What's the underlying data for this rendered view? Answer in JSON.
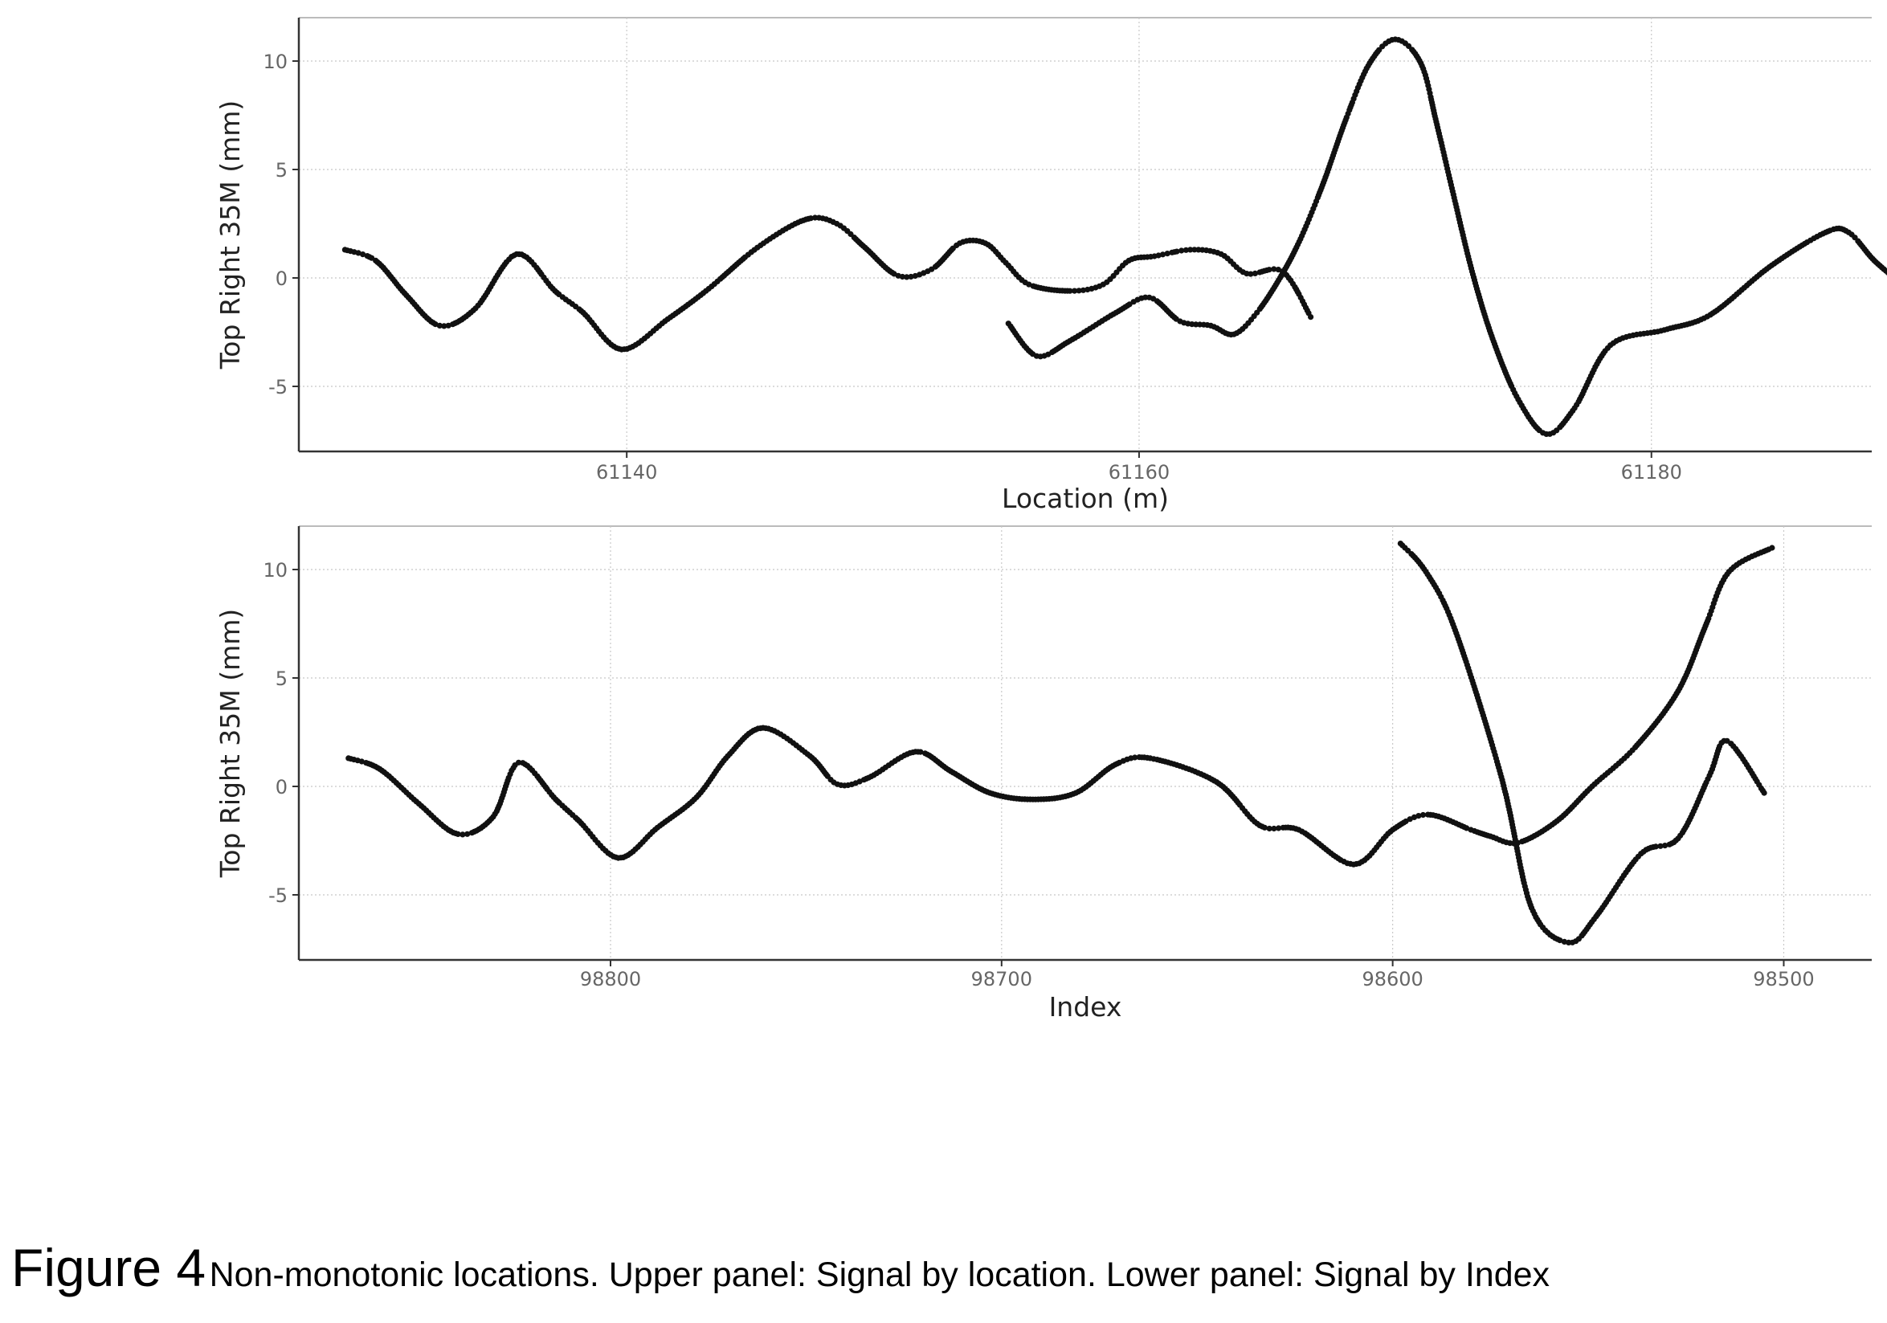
{
  "caption": {
    "label": "Figure 4",
    "text": "Non-monotonic locations. Upper panel: Signal by location. Lower panel: Signal by Index"
  },
  "chart_data": [
    {
      "type": "scatter",
      "xlabel": "Location (m)",
      "ylabel": "Top Right 35M (mm)",
      "xlim": [
        61127.2,
        61188.6
      ],
      "ylim": [
        -8,
        12
      ],
      "xticks": [
        61140,
        61160,
        61180
      ],
      "xtick_labels": [
        "61140",
        "61160",
        "61180"
      ],
      "yticks": [
        -5,
        0,
        5,
        10
      ],
      "ytick_labels": [
        "-5",
        "0",
        "5",
        "10"
      ],
      "grid": true,
      "series": [
        {
          "x": [
            61129.0,
            61130.2,
            61131.4,
            61132.7,
            61134.1,
            61135.7,
            61137.2,
            61138.3,
            61139.8,
            61141.6,
            61143.2,
            61145.1,
            61147.0,
            61148.2,
            61149.3,
            61150.6,
            61151.9,
            61153.0,
            61154.0,
            61154.8,
            61155.7,
            61157.3,
            61158.6,
            61159.6,
            61160.6,
            61162.0,
            61163.2,
            61164.2,
            61165.6,
            61166.7
          ],
          "y": [
            1.3,
            0.8,
            -0.8,
            -2.2,
            -1.4,
            1.1,
            -0.6,
            -1.6,
            -3.3,
            -1.9,
            -0.5,
            1.4,
            2.7,
            2.5,
            1.4,
            0.1,
            0.4,
            1.6,
            1.6,
            0.7,
            -0.3,
            -0.6,
            -0.3,
            0.8,
            1.0,
            1.3,
            1.1,
            0.2,
            0.3,
            -1.8
          ]
        },
        {
          "x": [
            61154.9,
            61156.0,
            61157.3,
            61159.1,
            61160.4,
            61161.6,
            61162.8,
            61163.7,
            61164.6,
            61165.5,
            61166.3,
            61167.2,
            61168.1,
            61169.0,
            61170.0,
            61171.0,
            61171.6,
            61172.3,
            61173.0,
            61173.8,
            61174.8,
            61175.9,
            61177.0,
            61178.4,
            61180.5,
            61182.3,
            61184.6,
            61186.8,
            61187.7,
            61188.7,
            61189.8
          ],
          "y": [
            -2.1,
            -3.6,
            -2.9,
            -1.6,
            -0.9,
            -2.0,
            -2.2,
            -2.6,
            -1.6,
            0.0,
            1.8,
            4.4,
            7.4,
            9.9,
            11.0,
            9.9,
            7.2,
            3.7,
            0.3,
            -2.8,
            -5.6,
            -7.2,
            -6.0,
            -3.1,
            -2.4,
            -1.7,
            0.5,
            2.1,
            2.1,
            0.8,
            -0.3
          ]
        }
      ]
    },
    {
      "type": "scatter",
      "xlabel": "Index",
      "ylabel": "Top Right 35M (mm)",
      "xlim": [
        98879.7,
        98477.5
      ],
      "ylim": [
        -8,
        12
      ],
      "xticks": [
        98800,
        98700,
        98600,
        98500
      ],
      "xtick_labels": [
        "98800",
        "98700",
        "98600",
        "98500"
      ],
      "yticks": [
        -5,
        0,
        5,
        10
      ],
      "ytick_labels": [
        "-5",
        "0",
        "5",
        "10"
      ],
      "grid": true,
      "series": [
        {
          "x": [
            98867.0,
            98859.0,
            98849.0,
            98839.0,
            98830.0,
            98823.5,
            98814.0,
            98808.0,
            98798.0,
            98788.0,
            98778.0,
            98770.0,
            98761.0,
            98749.0,
            98742.0,
            98734.0,
            98722.0,
            98713.0,
            98703.0,
            98692.0,
            98681.0,
            98671.0,
            98662.0,
            98645.0,
            98634.0,
            98624.0,
            98610.0,
            98600.0,
            98591.0,
            98580.0,
            98575.0,
            98568.0,
            98558.0,
            98549.0,
            98538.0,
            98527.0,
            98520.0,
            98514.0,
            98503.0
          ],
          "y": [
            1.3,
            0.8,
            -0.8,
            -2.2,
            -1.4,
            1.1,
            -0.6,
            -1.6,
            -3.3,
            -1.9,
            -0.5,
            1.4,
            2.7,
            1.4,
            0.1,
            0.4,
            1.6,
            0.7,
            -0.3,
            -0.6,
            -0.3,
            1.0,
            1.3,
            0.2,
            -1.8,
            -2.0,
            -3.6,
            -2.0,
            -1.3,
            -2.0,
            -2.3,
            -2.6,
            -1.6,
            0.0,
            1.8,
            4.4,
            7.4,
            9.9,
            11.0
          ]
        },
        {
          "x": [
            98598.0,
            98591.5,
            98584.0,
            98572.0,
            98564.5,
            98555.0,
            98548.0,
            98536.5,
            98527.0,
            98519.0,
            98514.5,
            98505.0
          ],
          "y": [
            11.2,
            9.9,
            7.2,
            0.3,
            -5.6,
            -7.2,
            -6.0,
            -3.1,
            -2.4,
            0.5,
            2.1,
            -0.3
          ]
        }
      ]
    }
  ]
}
